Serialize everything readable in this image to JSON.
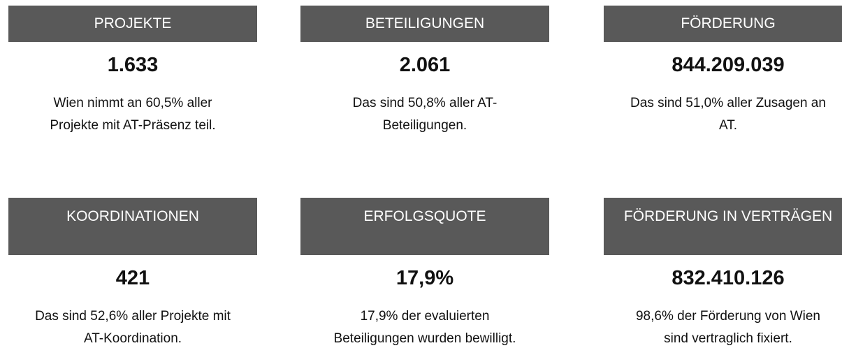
{
  "cards": [
    {
      "title": "PROJEKTE",
      "value": "1.633",
      "text": [
        "Wien nimmt an 60,5% aller",
        "Projekte mit AT-Präsenz teil."
      ]
    },
    {
      "title": "BETEILIGUNGEN",
      "value": "2.061",
      "text": [
        "Das sind 50,8% aller AT-",
        "Beteiligungen."
      ]
    },
    {
      "title": "FÖRDERUNG",
      "value": "844.209.039",
      "text": [
        "Das sind 51,0% aller Zusagen an",
        "AT."
      ]
    },
    {
      "title": "KOORDINATIONEN",
      "value": "421",
      "text": [
        "Das sind 52,6% aller Projekte mit",
        "AT-Koordination."
      ]
    },
    {
      "title": "ERFOLGSQUOTE",
      "value": "17,9%",
      "text": [
        "17,9% der evaluierten",
        "Beteiligungen wurden bewilligt."
      ]
    },
    {
      "title": "FÖRDERUNG IN VERTRÄGEN",
      "value": "832.410.126",
      "text": [
        "98,6% der Förderung von Wien",
        "sind vertraglich fixiert."
      ]
    }
  ]
}
